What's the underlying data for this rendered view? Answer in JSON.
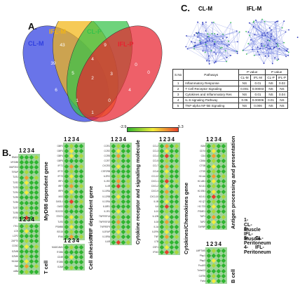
{
  "panels": {
    "a": "A.",
    "b": "B.",
    "c": "C."
  },
  "venn": {
    "sets": [
      {
        "label": "CL-M",
        "color": "#2f3fe0"
      },
      {
        "label": "IFL-M",
        "color": "#f2b515"
      },
      {
        "label": "CL-P",
        "color": "#36c24a"
      },
      {
        "label": "IFL-P",
        "color": "#e8222f"
      }
    ],
    "regions": [
      "0",
      "43",
      "9",
      "0",
      "39",
      "4",
      "0",
      "5",
      "2",
      "3",
      "6",
      "4",
      "1",
      "0",
      "1"
    ]
  },
  "network": {
    "left_label": "CL-M",
    "right_label": "IFL-M"
  },
  "stats_table": {
    "headers": [
      "S.No",
      "Pathways",
      "P value",
      "P value"
    ],
    "subheaders": [
      "CL-M",
      "IFL-M",
      "CL-P",
      "IFL-P"
    ],
    "rows": [
      [
        "1",
        "Inflammatory Response",
        "NS",
        "0.01",
        "NS",
        "0.02"
      ],
      [
        "2",
        "T Cell Receptor Signaling",
        "0.001",
        "0.00003",
        "NS",
        "NS"
      ],
      [
        "3",
        "Cytokines and Inflammatory Res",
        "NS",
        "0.01",
        "NS",
        "0.04"
      ],
      [
        "4",
        "IL-6 signaling Pathway",
        "0.05",
        "0.00006",
        "0.01",
        "NS"
      ],
      [
        "5",
        "TNF-alpha NF-kB Signaling",
        "NS",
        "0.006",
        "NS",
        "NS"
      ]
    ]
  },
  "color_scale": {
    "min": "-2.9",
    "max": "5.3",
    "low_color": "#2fb52f",
    "mid_color": "#f2ec3a",
    "high_color": "#e8402a"
  },
  "heatmaps": {
    "column_numbers": [
      "1",
      "2",
      "3",
      "4"
    ],
    "blocks": [
      {
        "title": "MyD88 dependent gene",
        "genes": [
          "IRAK2",
          "MYD88",
          "MAP2K3",
          "TIRAP",
          "TLR1",
          "TLR2",
          "TLR3",
          "TLR4",
          "TLR5",
          "TLR6",
          "TLR7",
          "TLR8",
          "IRG1"
        ],
        "values": [
          [
            0,
            0,
            0,
            1
          ],
          [
            0,
            0,
            0,
            0
          ],
          [
            0,
            0,
            0,
            0
          ],
          [
            0,
            1,
            0,
            0
          ],
          [
            0,
            3,
            0,
            1
          ],
          [
            0,
            2,
            0,
            0
          ],
          [
            0,
            1,
            0,
            0
          ],
          [
            0,
            2,
            0,
            0
          ],
          [
            0,
            0,
            0,
            0
          ],
          [
            0,
            0,
            0,
            0
          ],
          [
            0,
            1,
            0,
            0
          ],
          [
            0,
            1,
            0,
            0
          ],
          [
            0,
            4,
            0,
            1
          ]
        ]
      },
      {
        "title": "T cell",
        "genes": [
          "ITK1",
          "LCK",
          "LCP2",
          "ZAP70",
          "CD3G",
          "GZMB",
          "GZMK",
          "NCAM",
          "Sell",
          "cd8a"
        ],
        "values": [
          [
            0,
            1,
            0,
            0
          ],
          [
            0,
            2,
            0,
            0
          ],
          [
            0,
            0,
            0,
            0
          ],
          [
            0,
            1,
            0,
            0
          ],
          [
            0,
            2,
            0,
            1
          ],
          [
            0,
            0,
            0,
            0
          ],
          [
            0,
            1,
            0,
            0
          ],
          [
            0,
            2,
            0,
            0
          ],
          [
            0,
            3,
            0,
            1
          ],
          [
            0,
            1,
            0,
            0
          ]
        ]
      },
      {
        "title": "TRIF dependent gene",
        "genes": [
          "GBP2",
          "GBP3",
          "GBP4",
          "GBP5",
          "IFIT1",
          "IFIT2",
          "IFIT3",
          "IRF1",
          "IRF7",
          "IRF9",
          "MX2",
          "OASL1",
          "OAS2",
          "SOCS3",
          "STAT1",
          "TLR3",
          "PSMB8",
          "ISG15",
          "IFI44"
        ],
        "values": [
          [
            0,
            1,
            0,
            0
          ],
          [
            0,
            2,
            0,
            0
          ],
          [
            0,
            2,
            0,
            1
          ],
          [
            0,
            0,
            0,
            0
          ],
          [
            0,
            3,
            0,
            1
          ],
          [
            0,
            1,
            0,
            0
          ],
          [
            0,
            2,
            0,
            0
          ],
          [
            0,
            1,
            0,
            0
          ],
          [
            0,
            3,
            0,
            1
          ],
          [
            0,
            2,
            0,
            0
          ],
          [
            0,
            1,
            0,
            0
          ],
          [
            0,
            4,
            0,
            1
          ],
          [
            0,
            1,
            0,
            0
          ],
          [
            0,
            0,
            0,
            0
          ],
          [
            0,
            2,
            0,
            1
          ],
          [
            0,
            1,
            0,
            0
          ],
          [
            0,
            2,
            0,
            0
          ],
          [
            0,
            1,
            0,
            0
          ],
          [
            0,
            3,
            0,
            1
          ]
        ]
      },
      {
        "title": "Cell adhesion",
        "genes": [
          "MADCAM1",
          "ITGB6",
          "CD49",
          "ITGB5",
          "ICAM"
        ],
        "values": [
          [
            0,
            1,
            0,
            0
          ],
          [
            0,
            0,
            0,
            0
          ],
          [
            0,
            2,
            0,
            0
          ],
          [
            0,
            0,
            0,
            0
          ],
          [
            0,
            1,
            0,
            0
          ]
        ]
      },
      {
        "title": "Cytokine receptor and signaling molecule",
        "genes": [
          "CCR1",
          "CCR2",
          "CCR5",
          "CCR7",
          "CXCR3",
          "CSF2RB",
          "IL2RG",
          "IL1R2",
          "IL4R",
          "IL10RA",
          "IL12RB",
          "IL13RA",
          "IL18R1",
          "IL1R1",
          "TNFRSF1A",
          "TNFRSF1B",
          "TNFRSF9",
          "IL1RAP",
          "IL15RA",
          "IL6R"
        ],
        "values": [
          [
            0,
            1,
            0,
            0
          ],
          [
            0,
            2,
            0,
            0
          ],
          [
            0,
            3,
            0,
            1
          ],
          [
            0,
            1,
            0,
            0
          ],
          [
            0,
            2,
            0,
            0
          ],
          [
            0,
            0,
            0,
            0
          ],
          [
            0,
            1,
            0,
            0
          ],
          [
            0,
            3,
            0,
            1
          ],
          [
            0,
            4,
            0,
            1
          ],
          [
            0,
            1,
            0,
            0
          ],
          [
            0,
            2,
            0,
            0
          ],
          [
            0,
            1,
            0,
            0
          ],
          [
            0,
            0,
            0,
            0
          ],
          [
            0,
            2,
            0,
            1
          ],
          [
            0,
            1,
            0,
            0
          ],
          [
            0,
            3,
            0,
            0
          ],
          [
            0,
            1,
            0,
            0
          ],
          [
            0,
            2,
            0,
            1
          ],
          [
            0,
            1,
            0,
            0
          ],
          [
            0,
            4,
            0,
            1
          ]
        ]
      },
      {
        "title": "Cytokines/Chemokines gene",
        "genes": [
          "CCL2",
          "CCL3",
          "CCL4",
          "CCL5",
          "CCL7",
          "CCL8",
          "CCL12",
          "CXCL1",
          "CXCL2",
          "CXCL9",
          "CXCL10",
          "IL1B",
          "IL6",
          "IL10",
          "IL12B",
          "IL18",
          "IL1A",
          "IL1RN",
          "TNF",
          "LTB",
          "CSF1",
          "IFNG"
        ],
        "values": [
          [
            0,
            3,
            0,
            1
          ],
          [
            0,
            2,
            0,
            0
          ],
          [
            0,
            4,
            0,
            1
          ],
          [
            0,
            1,
            0,
            0
          ],
          [
            0,
            3,
            0,
            1
          ],
          [
            0,
            2,
            0,
            0
          ],
          [
            0,
            1,
            0,
            0
          ],
          [
            0,
            4,
            0,
            1
          ],
          [
            0,
            2,
            0,
            0
          ],
          [
            0,
            3,
            0,
            1
          ],
          [
            0,
            1,
            0,
            0
          ],
          [
            0,
            2,
            0,
            0
          ],
          [
            0,
            4,
            0,
            1
          ],
          [
            0,
            1,
            0,
            0
          ],
          [
            0,
            2,
            0,
            0
          ],
          [
            0,
            3,
            0,
            1
          ],
          [
            0,
            1,
            0,
            0
          ],
          [
            0,
            2,
            0,
            0
          ],
          [
            0,
            3,
            0,
            1
          ],
          [
            0,
            1,
            0,
            0
          ],
          [
            0,
            2,
            0,
            0
          ],
          [
            0,
            4,
            0,
            1
          ]
        ]
      },
      {
        "title": "Antigen processing and presentation",
        "genes": [
          "B2M",
          "CD74",
          "CD4",
          "CD8A",
          "CTSB",
          "CTSS",
          "H2-AA",
          "H2-AB1",
          "H2-D1",
          "H2-EB1",
          "H2-K1",
          "H2-Q7",
          "H2-T23",
          "PSME1",
          "TAP1",
          "TAP2",
          "TAPBP"
        ],
        "values": [
          [
            0,
            1,
            0,
            0
          ],
          [
            0,
            2,
            0,
            0
          ],
          [
            0,
            3,
            0,
            1
          ],
          [
            0,
            1,
            0,
            0
          ],
          [
            0,
            2,
            0,
            0
          ],
          [
            0,
            1,
            0,
            0
          ],
          [
            0,
            3,
            0,
            1
          ],
          [
            0,
            2,
            0,
            0
          ],
          [
            0,
            1,
            0,
            0
          ],
          [
            0,
            2,
            0,
            0
          ],
          [
            0,
            4,
            0,
            1
          ],
          [
            0,
            1,
            0,
            0
          ],
          [
            0,
            2,
            0,
            0
          ],
          [
            0,
            1,
            0,
            0
          ],
          [
            0,
            3,
            0,
            1
          ],
          [
            0,
            2,
            0,
            0
          ],
          [
            0,
            1,
            0,
            0
          ]
        ]
      },
      {
        "title": "B cell",
        "genes": [
          "LMPTMS",
          "Pfsp1",
          "Pfsp2",
          "Pou2f3",
          "Tnfrsf13",
          "Cd79b",
          "Fcrla"
        ],
        "values": [
          [
            0,
            1,
            0,
            0
          ],
          [
            0,
            0,
            0,
            0
          ],
          [
            0,
            2,
            0,
            0
          ],
          [
            0,
            1,
            0,
            0
          ],
          [
            0,
            0,
            0,
            0
          ],
          [
            0,
            1,
            0,
            0
          ],
          [
            0,
            2,
            0,
            0
          ]
        ]
      }
    ]
  },
  "legend": [
    {
      "num": "1-",
      "label": "CL-Muscle"
    },
    {
      "num": "2-",
      "label": "IFL-Muscle"
    },
    {
      "num": "3-",
      "label": "CL-Peritoneum"
    },
    {
      "num": "4-",
      "label": "IFL-Peritoneum"
    }
  ]
}
